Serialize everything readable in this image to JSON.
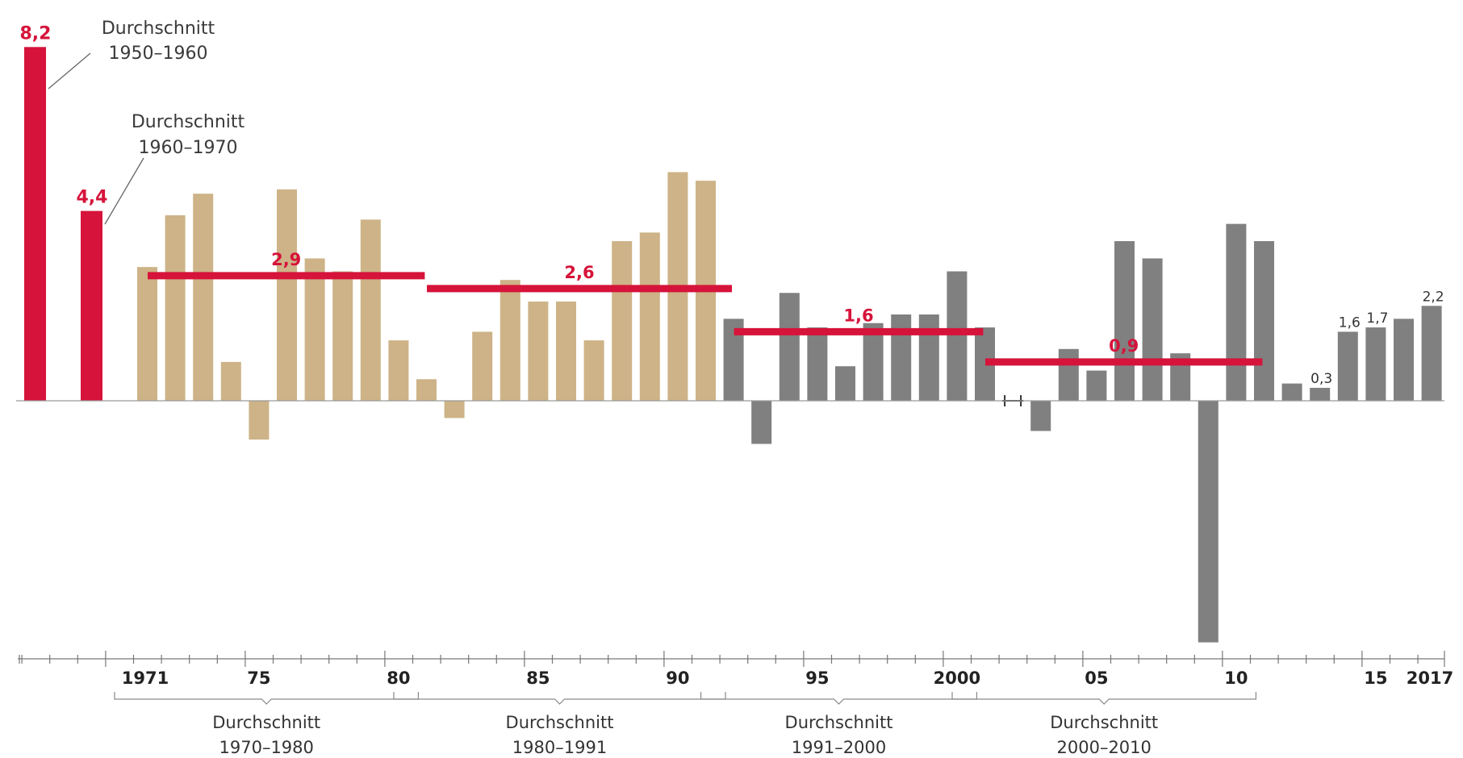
{
  "chart_data": {
    "type": "bar",
    "colors": {
      "early_average": "#d6133a",
      "average_line": "#d6133a",
      "series_1971_1991": "#cdb387",
      "series_1992_2017": "#808080"
    },
    "early_averages": [
      {
        "period": "1950-1960",
        "value": 8.2,
        "label": "8,2",
        "note_line1": "Durchschnitt",
        "note_line2": "1950–1960"
      },
      {
        "period": "1960-1970",
        "value": 4.4,
        "label": "4,4",
        "note_line1": "Durchschnitt",
        "note_line2": "1960–1970"
      }
    ],
    "years": [
      1971,
      1972,
      1973,
      1974,
      1975,
      1976,
      1977,
      1978,
      1979,
      1980,
      1981,
      1982,
      1983,
      1984,
      1985,
      1986,
      1987,
      1988,
      1989,
      1990,
      1991,
      1992,
      1993,
      1994,
      1995,
      1996,
      1997,
      1998,
      1999,
      2000,
      2001,
      2002,
      2003,
      2004,
      2005,
      2006,
      2007,
      2008,
      2009,
      2010,
      2011,
      2012,
      2013,
      2014,
      2015,
      2016,
      2017
    ],
    "values": [
      3.1,
      4.3,
      4.8,
      0.9,
      -0.9,
      4.9,
      3.3,
      3.0,
      4.2,
      1.4,
      0.5,
      -0.4,
      1.6,
      2.8,
      2.3,
      2.3,
      1.4,
      3.7,
      3.9,
      5.3,
      5.1,
      1.9,
      -1.0,
      2.5,
      1.7,
      0.8,
      1.8,
      2.0,
      2.0,
      3.0,
      1.7,
      0.0,
      -0.7,
      1.2,
      0.7,
      3.7,
      3.3,
      1.1,
      -5.6,
      4.1,
      3.7,
      0.4,
      0.3,
      1.6,
      1.7,
      1.9,
      2.2
    ],
    "value_labels": [
      {
        "year": 2013,
        "label": "0,3"
      },
      {
        "year": 2014,
        "label": "1,6"
      },
      {
        "year": 2015,
        "label": "1,7"
      },
      {
        "year": 2017,
        "label": "2,2"
      }
    ],
    "averages": [
      {
        "from": 1971,
        "to": 1980,
        "value": 2.9,
        "label": "2,9"
      },
      {
        "from": 1981,
        "to": 1991,
        "value": 2.6,
        "label": "2,6"
      },
      {
        "from": 1992,
        "to": 2000,
        "value": 1.6,
        "label": "1,6"
      },
      {
        "from": 2001,
        "to": 2010,
        "value": 0.9,
        "label": "0,9"
      }
    ],
    "x_tick_labels": [
      {
        "year": 1971,
        "label": "1971"
      },
      {
        "year": 1975,
        "label": "75"
      },
      {
        "year": 1980,
        "label": "80"
      },
      {
        "year": 1985,
        "label": "85"
      },
      {
        "year": 1990,
        "label": "90"
      },
      {
        "year": 1995,
        "label": "95"
      },
      {
        "year": 2000,
        "label": "2000"
      },
      {
        "year": 2005,
        "label": "05"
      },
      {
        "year": 2010,
        "label": "10"
      },
      {
        "year": 2015,
        "label": "15"
      },
      {
        "year": 2017,
        "label": "2017"
      }
    ],
    "period_brackets": [
      {
        "from": 1971,
        "to": 1980,
        "line1": "Durchschnitt",
        "line2": "1970–1980"
      },
      {
        "from": 1981,
        "to": 1991,
        "line1": "Durchschnitt",
        "line2": "1980–1991"
      },
      {
        "from": 1992,
        "to": 2000,
        "line1": "Durchschnitt",
        "line2": "1991–2000"
      },
      {
        "from": 2001,
        "to": 2010,
        "line1": "Durchschnitt",
        "line2": "2000–2010"
      }
    ],
    "ylim": [
      -5.6,
      8.2
    ],
    "grid": false
  }
}
